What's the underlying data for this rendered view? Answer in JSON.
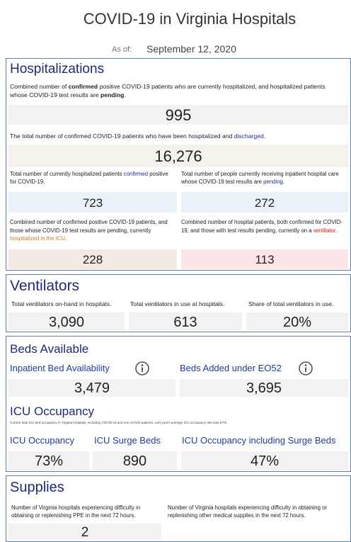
{
  "header": {
    "title": "COVID-19 in Virginia Hospitals",
    "as_of_label": "As of:",
    "date": "September 12, 2020"
  },
  "hospitalizations": {
    "title": "Hospitalizations",
    "current": {
      "text": [
        "Combined number of ",
        "confirmed",
        " positive COVID-19 patients who are currently hospitalized, and hospitalized patients whose COVID-19 test results are ",
        "pending",
        "."
      ],
      "value": "995"
    },
    "total": {
      "text": [
        "The total number of confirmed COVID-19 patients who have been hospitalized and ",
        "discharged",
        "."
      ],
      "value": "16,276"
    },
    "confirmed": {
      "text": [
        "Total number of currently hospitalized patients ",
        "confirmed",
        " positive for COVID-19."
      ],
      "value": "723"
    },
    "pending": {
      "text": [
        "Total number of people currently receiving inpatient hospital care whose COVID-19 test results are ",
        "pending",
        "."
      ],
      "value": "272"
    },
    "icu": {
      "text": [
        "Combined number of confirmed positive COVID-19 patients, and those whose COVID-19 test results are pending, currently ",
        "hospitalized in the ICU",
        "."
      ],
      "value": "228"
    },
    "ventilator": {
      "text": [
        "Combined number of hospital patients, both confirmed for COVID-19, and those with test results pending, currently on a ",
        "ventilator",
        "."
      ],
      "value": "113"
    }
  },
  "ventilators": {
    "title": "Ventilators",
    "items": [
      {
        "label": "Total ventilators on-hand in hospitals.",
        "value": "3,090"
      },
      {
        "label": "Total ventilators in use at hospitals.",
        "value": "613"
      },
      {
        "label": "Share of total ventilators in use.",
        "value": "20%"
      }
    ]
  },
  "beds": {
    "title": "Beds Available",
    "items": [
      {
        "label": "Inpatient Bed Availability",
        "value": "3,479"
      },
      {
        "label": "Beds Added under EO52",
        "value": "3,695"
      }
    ]
  },
  "icu_occupancy": {
    "title": "ICU Occupancy",
    "note": "Current total ICU bed occupancy in Virginia hospitals, including COVID-19 and non-COVID patients. Last year's average ICU occupancy rate was 67%.",
    "items": [
      {
        "label": "ICU Occupancy",
        "value": "73%"
      },
      {
        "label": "ICU Surge Beds",
        "value": "890"
      },
      {
        "label": "ICU Occupancy including Surge Beds",
        "value": "47%"
      }
    ]
  },
  "supplies": {
    "title": "Supplies",
    "items": [
      {
        "label": "Number of Virginia hospitals experiencing difficulty in obtaining or replenishing PPE in the next 72 hours.",
        "value": "2"
      },
      {
        "label": "Number of Virginia hospitals experiencing difficulty in obtaining or replenishing other medical supplies in the next 72 hours."
      }
    ]
  }
}
